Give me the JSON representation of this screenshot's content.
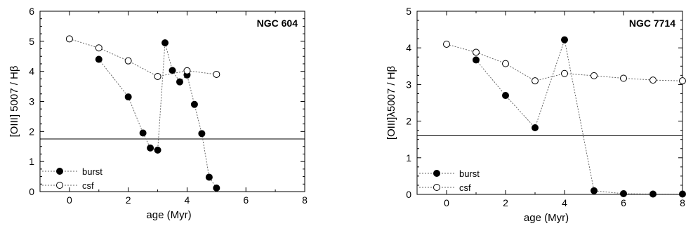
{
  "chart_data": [
    {
      "type": "scatter",
      "title": "NGC   604",
      "xlabel": "age (Myr)",
      "ylabel": "[OIII] 5007 / Hβ",
      "xlim": [
        -1,
        8
      ],
      "ylim": [
        0,
        6
      ],
      "xticks": [
        0,
        2,
        4,
        6,
        8
      ],
      "yticks": [
        0,
        1,
        2,
        3,
        4,
        5,
        6
      ],
      "grid": false,
      "legend_position": "bottom-left",
      "reference_line_y": 1.75,
      "series": [
        {
          "name": "burst",
          "marker": "filled-circle",
          "line": "dotted",
          "color": "#000000",
          "x": [
            1,
            2,
            2.5,
            2.75,
            3,
            3.25,
            3.5,
            3.75,
            4,
            4.25,
            4.5,
            4.75,
            5
          ],
          "y": [
            4.4,
            3.15,
            1.95,
            1.45,
            1.38,
            4.95,
            4.03,
            3.65,
            3.88,
            2.9,
            1.93,
            0.48,
            0.12
          ]
        },
        {
          "name": "csf",
          "marker": "open-circle",
          "line": "dotted",
          "color": "#000000",
          "x": [
            0,
            1,
            2,
            3,
            4,
            5
          ],
          "y": [
            5.08,
            4.78,
            4.35,
            3.83,
            4.02,
            3.9
          ]
        }
      ]
    },
    {
      "type": "scatter",
      "title": "NGC   7714",
      "xlabel": "age (Myr)",
      "ylabel": "[OIII]λ5007 / Hβ",
      "xlim": [
        -1,
        8
      ],
      "ylim": [
        0,
        5
      ],
      "xticks": [
        0,
        2,
        4,
        6,
        8
      ],
      "yticks": [
        0,
        1,
        2,
        3,
        4,
        5
      ],
      "grid": false,
      "legend_position": "bottom-left",
      "reference_line_y": 1.6,
      "series": [
        {
          "name": "burst",
          "marker": "filled-circle",
          "line": "dotted",
          "color": "#000000",
          "x": [
            1,
            2,
            3,
            4,
            5,
            6,
            7,
            8
          ],
          "y": [
            3.67,
            2.7,
            1.82,
            4.22,
            0.1,
            0.02,
            0.01,
            0.01
          ]
        },
        {
          "name": "csf",
          "marker": "open-circle",
          "line": "dotted",
          "color": "#000000",
          "x": [
            0,
            1,
            2,
            3,
            4,
            5,
            6,
            7,
            8
          ],
          "y": [
            4.1,
            3.88,
            3.57,
            3.1,
            3.3,
            3.24,
            3.17,
            3.12,
            3.1
          ]
        }
      ]
    }
  ]
}
